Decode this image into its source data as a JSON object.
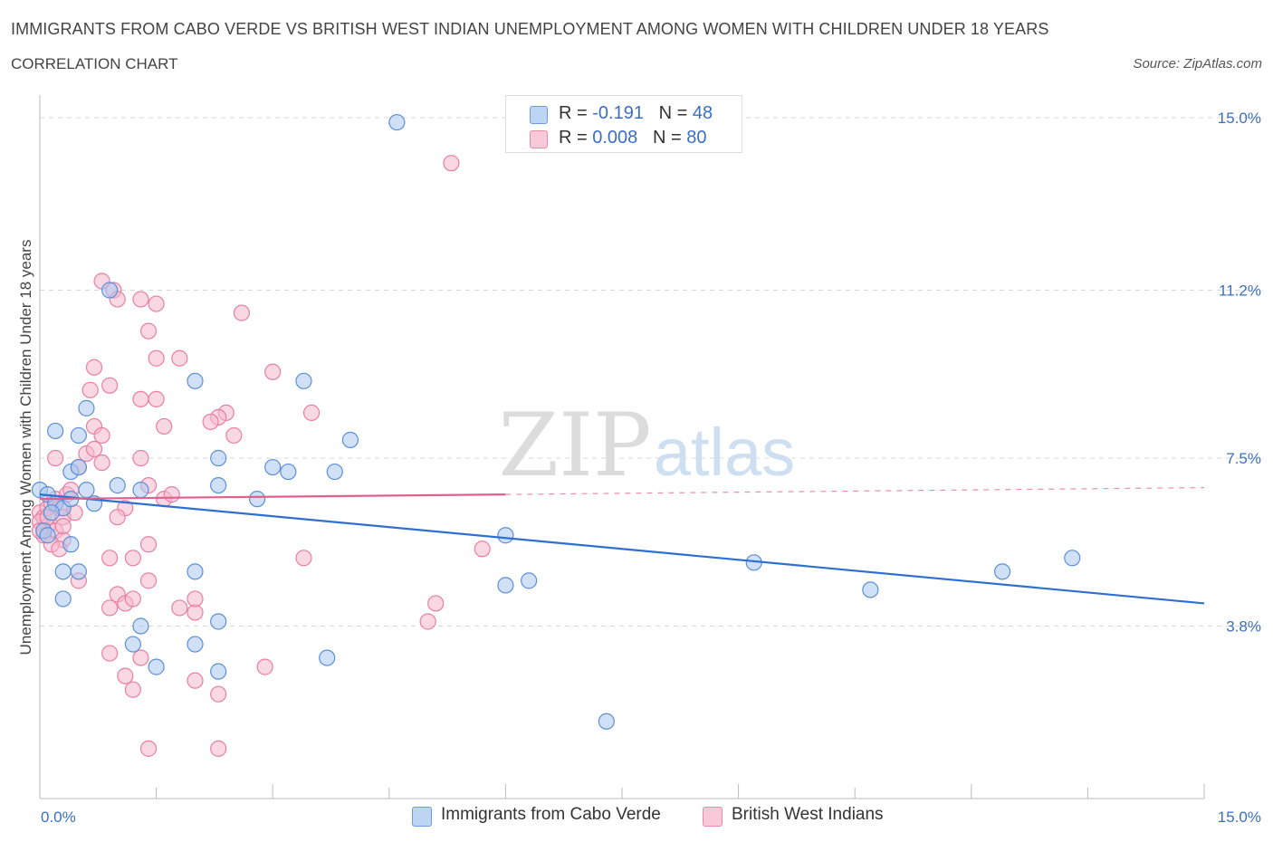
{
  "header": {
    "title": "IMMIGRANTS FROM CABO VERDE VS BRITISH WEST INDIAN UNEMPLOYMENT AMONG WOMEN WITH CHILDREN UNDER 18 YEARS",
    "subtitle": "CORRELATION CHART",
    "source": "Source: ZipAtlas.com"
  },
  "legend_top": {
    "rows": [
      {
        "r_label": "R = ",
        "r_value": "-0.191",
        "n_label": "N = ",
        "n_value": "48"
      },
      {
        "r_label": "R = ",
        "r_value": "0.008",
        "n_label": "N = ",
        "n_value": "80"
      }
    ]
  },
  "legend_bottom": {
    "items": [
      "Immigrants from Cabo Verde",
      "British West Indians"
    ]
  },
  "watermark": {
    "zip": "ZIP",
    "atlas": "atlas"
  },
  "colors": {
    "blue_fill": "#a9c8f0",
    "blue_stroke": "#5b8fd6",
    "blue_line": "#2e6fd0",
    "pink_fill": "#f5b8cc",
    "pink_stroke": "#e87fa3",
    "pink_line": "#e0608e",
    "axis_text": "#3a6fc4",
    "grid": "#d8d8d8"
  },
  "chart_data": {
    "type": "scatter",
    "title": "IMMIGRANTS FROM CABO VERDE VS BRITISH WEST INDIAN UNEMPLOYMENT AMONG WOMEN WITH CHILDREN UNDER 18 YEARS",
    "xlabel": "",
    "ylabel": "Unemployment Among Women with Children Under 18 years",
    "xlim": [
      0,
      15.0
    ],
    "ylim": [
      0,
      15.3
    ],
    "x_tick_labels": [
      "0.0%",
      "15.0%"
    ],
    "y_ticks": [
      3.8,
      7.5,
      11.2,
      15.0
    ],
    "y_tick_labels": [
      "3.8%",
      "7.5%",
      "11.2%",
      "15.0%"
    ],
    "grid": true,
    "series": [
      {
        "name": "Immigrants from Cabo Verde",
        "R": -0.191,
        "N": 48,
        "trend": {
          "x": [
            0,
            15.0
          ],
          "y": [
            6.7,
            4.3
          ],
          "dashed_from": null
        },
        "points": [
          [
            0.0,
            6.8
          ],
          [
            0.1,
            6.7
          ],
          [
            0.2,
            6.5
          ],
          [
            0.3,
            6.4
          ],
          [
            0.15,
            6.3
          ],
          [
            0.05,
            5.9
          ],
          [
            0.1,
            5.8
          ],
          [
            0.4,
            7.2
          ],
          [
            0.5,
            7.3
          ],
          [
            0.6,
            6.8
          ],
          [
            0.7,
            6.5
          ],
          [
            0.3,
            5.0
          ],
          [
            0.4,
            5.6
          ],
          [
            0.5,
            5.0
          ],
          [
            0.2,
            8.1
          ],
          [
            0.6,
            8.6
          ],
          [
            0.5,
            8.0
          ],
          [
            0.9,
            11.2
          ],
          [
            2.0,
            9.2
          ],
          [
            3.4,
            9.2
          ],
          [
            4.6,
            14.9
          ],
          [
            2.3,
            7.5
          ],
          [
            2.3,
            6.9
          ],
          [
            2.8,
            6.6
          ],
          [
            3.0,
            7.3
          ],
          [
            3.2,
            7.2
          ],
          [
            3.8,
            7.2
          ],
          [
            4.0,
            7.9
          ],
          [
            1.0,
            6.9
          ],
          [
            1.3,
            6.8
          ],
          [
            0.3,
            4.4
          ],
          [
            1.3,
            3.8
          ],
          [
            1.2,
            3.4
          ],
          [
            1.5,
            2.9
          ],
          [
            2.0,
            5.0
          ],
          [
            2.0,
            3.4
          ],
          [
            2.3,
            3.9
          ],
          [
            2.3,
            2.8
          ],
          [
            3.7,
            3.1
          ],
          [
            6.0,
            5.8
          ],
          [
            6.0,
            4.7
          ],
          [
            6.3,
            4.8
          ],
          [
            7.3,
            1.7
          ],
          [
            9.2,
            5.2
          ],
          [
            10.7,
            4.6
          ],
          [
            12.4,
            5.0
          ],
          [
            13.3,
            5.3
          ],
          [
            0.4,
            6.6
          ]
        ]
      },
      {
        "name": "British West Indians",
        "R": 0.008,
        "N": 80,
        "trend": {
          "x": [
            0,
            15.0
          ],
          "y": [
            6.6,
            6.85
          ],
          "dashed_from": 6.0
        },
        "points": [
          [
            0.0,
            6.3
          ],
          [
            0.05,
            6.2
          ],
          [
            0.1,
            6.4
          ],
          [
            0.15,
            6.5
          ],
          [
            0.2,
            6.6
          ],
          [
            0.25,
            6.4
          ],
          [
            0.3,
            6.2
          ],
          [
            0.35,
            6.7
          ],
          [
            0.4,
            6.8
          ],
          [
            0.1,
            6.0
          ],
          [
            0.2,
            5.9
          ],
          [
            0.3,
            5.7
          ],
          [
            0.0,
            6.1
          ],
          [
            0.05,
            5.8
          ],
          [
            0.15,
            5.6
          ],
          [
            0.25,
            5.5
          ],
          [
            0.45,
            6.3
          ],
          [
            0.5,
            7.3
          ],
          [
            0.6,
            7.6
          ],
          [
            0.7,
            7.7
          ],
          [
            0.8,
            7.4
          ],
          [
            0.2,
            7.5
          ],
          [
            0.7,
            8.2
          ],
          [
            0.8,
            8.0
          ],
          [
            0.65,
            9.0
          ],
          [
            0.7,
            9.5
          ],
          [
            0.9,
            9.1
          ],
          [
            0.8,
            11.4
          ],
          [
            0.95,
            11.2
          ],
          [
            1.0,
            11.0
          ],
          [
            1.3,
            11.0
          ],
          [
            1.5,
            10.9
          ],
          [
            1.4,
            10.3
          ],
          [
            1.5,
            9.7
          ],
          [
            1.8,
            9.7
          ],
          [
            2.6,
            10.7
          ],
          [
            3.0,
            9.4
          ],
          [
            2.4,
            8.5
          ],
          [
            2.3,
            8.4
          ],
          [
            2.2,
            8.3
          ],
          [
            2.5,
            8.0
          ],
          [
            1.6,
            8.2
          ],
          [
            1.3,
            8.8
          ],
          [
            1.5,
            8.8
          ],
          [
            1.3,
            7.5
          ],
          [
            1.4,
            6.9
          ],
          [
            3.5,
            8.5
          ],
          [
            1.1,
            6.4
          ],
          [
            1.0,
            6.2
          ],
          [
            1.6,
            6.6
          ],
          [
            1.7,
            6.7
          ],
          [
            1.4,
            5.6
          ],
          [
            1.2,
            5.3
          ],
          [
            0.9,
            5.3
          ],
          [
            0.5,
            4.8
          ],
          [
            1.0,
            4.5
          ],
          [
            1.1,
            4.3
          ],
          [
            1.2,
            4.4
          ],
          [
            1.4,
            4.8
          ],
          [
            1.8,
            4.2
          ],
          [
            2.0,
            4.1
          ],
          [
            2.0,
            4.4
          ],
          [
            0.9,
            4.2
          ],
          [
            0.9,
            3.2
          ],
          [
            1.1,
            2.7
          ],
          [
            1.2,
            2.4
          ],
          [
            1.3,
            3.1
          ],
          [
            2.0,
            2.6
          ],
          [
            2.3,
            2.3
          ],
          [
            2.9,
            2.9
          ],
          [
            1.4,
            1.1
          ],
          [
            2.3,
            1.1
          ],
          [
            3.4,
            5.3
          ],
          [
            5.7,
            5.5
          ],
          [
            5.1,
            4.3
          ],
          [
            5.0,
            3.9
          ],
          [
            5.3,
            14.0
          ],
          [
            0.0,
            5.9
          ],
          [
            0.1,
            6.2
          ],
          [
            0.3,
            6.0
          ]
        ]
      }
    ]
  }
}
